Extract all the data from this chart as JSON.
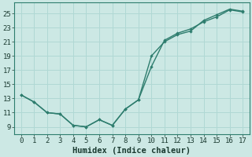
{
  "xlabel": "Humidex (Indice chaleur)",
  "ylabel": "",
  "bg_color": "#cce8e4",
  "grid_color": "#b0d8d4",
  "line_color": "#2e7d6e",
  "xlim": [
    -0.5,
    17.5
  ],
  "ylim": [
    8.0,
    26.5
  ],
  "xticks": [
    0,
    1,
    2,
    3,
    4,
    5,
    6,
    7,
    8,
    9,
    10,
    11,
    12,
    13,
    14,
    15,
    16,
    17
  ],
  "yticks": [
    9,
    11,
    13,
    15,
    17,
    19,
    21,
    23,
    25
  ],
  "line1_x": [
    0,
    1,
    2,
    3,
    4,
    5,
    6,
    7,
    8,
    9,
    10,
    11,
    12,
    13,
    14,
    15,
    16,
    17
  ],
  "line1_y": [
    13.5,
    12.5,
    11.0,
    10.8,
    9.2,
    9.0,
    10.0,
    9.2,
    11.5,
    12.8,
    19.0,
    21.0,
    22.0,
    22.5,
    24.0,
    24.8,
    25.6,
    25.3
  ],
  "line2_x": [
    0,
    1,
    2,
    3,
    4,
    5,
    6,
    7,
    8,
    9,
    10,
    11,
    12,
    13,
    14,
    15,
    16,
    17
  ],
  "line2_y": [
    13.5,
    12.5,
    11.0,
    10.8,
    9.2,
    9.0,
    10.0,
    9.2,
    11.5,
    12.8,
    17.5,
    21.2,
    22.2,
    22.8,
    23.8,
    24.5,
    25.5,
    25.2
  ],
  "font_family": "monospace",
  "tick_fontsize": 6.5,
  "xlabel_fontsize": 7.5
}
